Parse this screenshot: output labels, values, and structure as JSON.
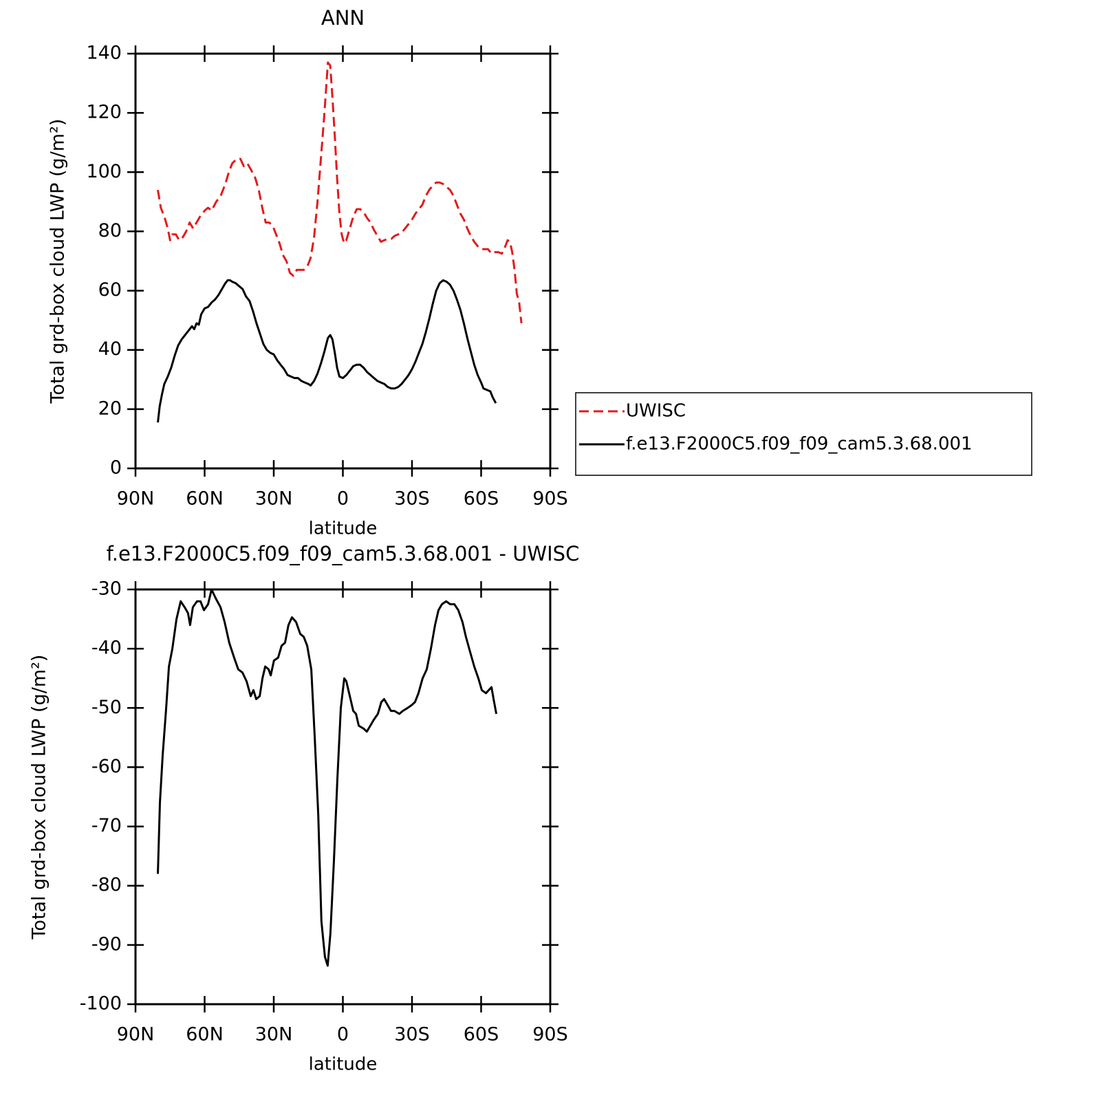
{
  "chart_data": [
    {
      "type": "line",
      "title": "ANN",
      "xlabel": "latitude",
      "ylabel": "Total grd-box cloud LWP (g/m²)",
      "xlim": [
        90,
        -90
      ],
      "xticks": [
        {
          "value": 90,
          "label": "90N"
        },
        {
          "value": 60,
          "label": "60N"
        },
        {
          "value": 30,
          "label": "30N"
        },
        0,
        {
          "value": -30,
          "label": "30S"
        },
        {
          "value": -60,
          "label": "60S"
        },
        {
          "value": -90,
          "label": "90S"
        }
      ],
      "ylim": [
        0,
        140
      ],
      "yticks": [
        0,
        20,
        40,
        60,
        80,
        100,
        120,
        140
      ],
      "legend": "right",
      "series": [
        {
          "name": "UWISC",
          "color": "#e31a1c",
          "line_style": "dashed",
          "x": [
            80.3,
            79,
            77.5,
            76,
            75,
            74,
            72.5,
            71,
            69.5,
            68,
            66.5,
            65,
            63.5,
            62,
            60,
            58.5,
            57,
            55,
            53,
            51,
            49.5,
            48,
            46,
            44.5,
            43,
            41.5,
            40,
            38,
            36.5,
            35,
            33.5,
            32,
            30.5,
            29,
            27.5,
            26,
            24.5,
            23,
            21.5,
            20,
            18.5,
            17,
            15.5,
            14,
            12.5,
            11,
            9.5,
            8,
            6.5,
            5.5,
            4.5,
            3.5,
            2.5,
            1.5,
            0.5,
            -0.5,
            -1.5,
            -3,
            -4.5,
            -6,
            -7.5,
            -9,
            -10.5,
            -12,
            -13.5,
            -15,
            -16.5,
            -18,
            -19.5,
            -21,
            -22.5,
            -24,
            -25.5,
            -27,
            -28.5,
            -30,
            -31.5,
            -33,
            -34.5,
            -36,
            -37.5,
            -39,
            -40.5,
            -42,
            -43.5,
            -45,
            -46.5,
            -48,
            -49.5,
            -51,
            -52.5,
            -54,
            -55.5,
            -57,
            -58.5,
            -60,
            -61.5,
            -63,
            -64.5,
            -66,
            -67.5,
            -69,
            -70.5,
            -71.5,
            -72.5,
            -73.5,
            -74.5,
            -75.5,
            -76.5,
            -77.5
          ],
          "values": [
            94,
            88,
            85,
            81,
            77,
            79,
            79,
            77,
            78,
            80,
            83,
            81,
            83,
            85,
            87,
            88,
            87,
            90,
            92,
            96,
            100,
            103,
            104.5,
            104.5,
            102,
            103,
            101,
            98,
            94,
            88,
            83,
            83,
            82,
            79,
            76,
            72,
            70,
            66,
            65,
            67,
            67,
            67,
            68,
            71,
            78,
            90,
            105,
            120,
            137,
            136,
            125,
            112,
            98,
            86,
            79,
            76,
            77,
            81,
            85,
            87.5,
            87.5,
            86.5,
            84.5,
            83,
            80.5,
            78.5,
            76.5,
            77,
            77.5,
            77.5,
            78.5,
            79,
            79.5,
            81,
            82.5,
            84,
            86,
            87.5,
            89,
            92,
            94,
            95.5,
            96.5,
            96.5,
            96,
            95,
            94,
            92,
            89,
            86,
            84,
            81,
            78.5,
            76.5,
            75,
            74,
            74,
            74,
            72.5,
            73,
            73,
            72.5,
            75,
            77,
            76.5,
            73,
            67,
            59,
            56,
            49
          ]
        },
        {
          "name": "f.e13.F2000C5.f09_f09_cam5.3.68.001",
          "color": "#000000",
          "line_style": "solid",
          "x": [
            80.3,
            79.5,
            78.5,
            77.5,
            76,
            74.5,
            73,
            71.5,
            70,
            68.5,
            67,
            65.5,
            64.5,
            63.5,
            62.5,
            61.5,
            60,
            58.5,
            57,
            55.5,
            54,
            52.5,
            51,
            50,
            49,
            48,
            46.5,
            45,
            43.5,
            42,
            40.5,
            39,
            37.5,
            36,
            34.5,
            33,
            31.5,
            30,
            28.5,
            27,
            25.5,
            24,
            22.5,
            21,
            19.5,
            18,
            16.5,
            15,
            14,
            12.5,
            11,
            9.5,
            8,
            6.5,
            5.5,
            4.5,
            3.5,
            2.5,
            1.5,
            0,
            -1.5,
            -3,
            -4.5,
            -6,
            -7.5,
            -9,
            -10.5,
            -12,
            -13.5,
            -15,
            -16.5,
            -18,
            -19.5,
            -21,
            -22.5,
            -24,
            -25.5,
            -27,
            -28.5,
            -30,
            -31.5,
            -33,
            -34.5,
            -36,
            -37.5,
            -39,
            -40.5,
            -42,
            -43.5,
            -45,
            -46.5,
            -48,
            -49.5,
            -51,
            -52.5,
            -54,
            -55.5,
            -57,
            -58.5,
            -60,
            -61,
            -62.5,
            -64,
            -65,
            -66.4
          ],
          "values": [
            15.5,
            21,
            25,
            28.5,
            31,
            34,
            38,
            41.5,
            43.5,
            45,
            46.5,
            48,
            47,
            49,
            48.5,
            52,
            54,
            54.5,
            56,
            57,
            58.5,
            60.5,
            62.5,
            63.5,
            63.5,
            63,
            62.5,
            61.5,
            60.5,
            58,
            56.5,
            53,
            49,
            45.5,
            42,
            40,
            39,
            38.5,
            36.5,
            35,
            33.5,
            31.5,
            31,
            30.5,
            30.5,
            29.5,
            29,
            28.5,
            28,
            29.5,
            32,
            35.5,
            39.5,
            44,
            45,
            43.5,
            39,
            34,
            31,
            30.5,
            31.5,
            33,
            34.5,
            35,
            35,
            34,
            32.5,
            31.5,
            30.5,
            29.5,
            29,
            28.5,
            27.5,
            27,
            27,
            27.5,
            28.5,
            30,
            31.5,
            33.5,
            36,
            39,
            42,
            46,
            50.5,
            55.5,
            60,
            62.5,
            63.5,
            63,
            62,
            60,
            57,
            53.5,
            49,
            44,
            39.5,
            35,
            31.5,
            29,
            27,
            26.5,
            26,
            24,
            22
          ]
        }
      ]
    },
    {
      "type": "line",
      "title": "f.e13.F2000C5.f09_f09_cam5.3.68.001 - UWISC",
      "xlabel": "latitude",
      "ylabel": "Total grd-box cloud LWP (g/m²)",
      "xlim": [
        90,
        -90
      ],
      "xticks": [
        {
          "value": 90,
          "label": "90N"
        },
        {
          "value": 60,
          "label": "60N"
        },
        {
          "value": 30,
          "label": "30N"
        },
        0,
        {
          "value": -30,
          "label": "30S"
        },
        {
          "value": -60,
          "label": "60S"
        },
        {
          "value": -90,
          "label": "90S"
        }
      ],
      "ylim": [
        -100,
        -30
      ],
      "yticks": [
        -100,
        -90,
        -80,
        -70,
        -60,
        -50,
        -40,
        -30
      ],
      "series": [
        {
          "color": "#000000",
          "line_style": "solid",
          "x": [
            80.3,
            79.4,
            78.2,
            76.7,
            75.5,
            74,
            72.2,
            70.4,
            68.7,
            67.2,
            66.3,
            65.1,
            63.3,
            61.8,
            60.3,
            58.5,
            57,
            55.2,
            53.1,
            51.3,
            49.3,
            47.2,
            45.4,
            43.6,
            41.8,
            40,
            38.8,
            37.6,
            36.1,
            34.9,
            33.7,
            32.2,
            31.3,
            29.9,
            28.1,
            26.6,
            25.1,
            23.6,
            22.1,
            20.3,
            18.5,
            17,
            15.5,
            13.7,
            12.2,
            10.7,
            9.3,
            7.8,
            6.6,
            5.4,
            3.9,
            2.4,
            0.9,
            -0.6,
            -1.5,
            -3,
            -4.5,
            -5.7,
            -6.9,
            -9,
            -10.4,
            -11.9,
            -13.4,
            -15.2,
            -16.7,
            -17.9,
            -19.4,
            -20.9,
            -22.4,
            -24.5,
            -26,
            -28.1,
            -29.9,
            -31.3,
            -32.8,
            -34.6,
            -36.4,
            -38.2,
            -40,
            -41.5,
            -43,
            -44.8,
            -46.6,
            -48.4,
            -50.1,
            -51.9,
            -53.4,
            -55.2,
            -57,
            -58.8,
            -60.3,
            -62.1,
            -63.3,
            -64.5,
            -65.4,
            -66.6
          ],
          "values": [
            -78,
            -66,
            -58,
            -50,
            -43,
            -40,
            -35,
            -32,
            -33,
            -34,
            -36,
            -33,
            -32,
            -32,
            -33.5,
            -32.5,
            -30,
            -31.5,
            -33,
            -35.5,
            -39,
            -41.5,
            -43.5,
            -44,
            -45.5,
            -48,
            -47,
            -48.5,
            -48,
            -45,
            -43,
            -43.5,
            -44.5,
            -42,
            -41.5,
            -39.5,
            -39,
            -36,
            -34.7,
            -35.5,
            -37.5,
            -38,
            -39.5,
            -43.5,
            -55,
            -68,
            -86,
            -92,
            -93.5,
            -88,
            -76,
            -62,
            -50,
            -45,
            -45.5,
            -48,
            -50.5,
            -51,
            -53,
            -53.5,
            -54,
            -53,
            -52,
            -51,
            -49,
            -48.5,
            -49.5,
            -50.5,
            -50.5,
            -51,
            -50.5,
            -50,
            -49.5,
            -49,
            -47.5,
            -45,
            -43.5,
            -40,
            -36,
            -33.5,
            -32.5,
            -32,
            -32.5,
            -32.5,
            -33.5,
            -35.5,
            -38,
            -40.5,
            -43,
            -45,
            -47,
            -47.5,
            -47,
            -46.5,
            -48.5,
            -51
          ]
        }
      ]
    }
  ]
}
